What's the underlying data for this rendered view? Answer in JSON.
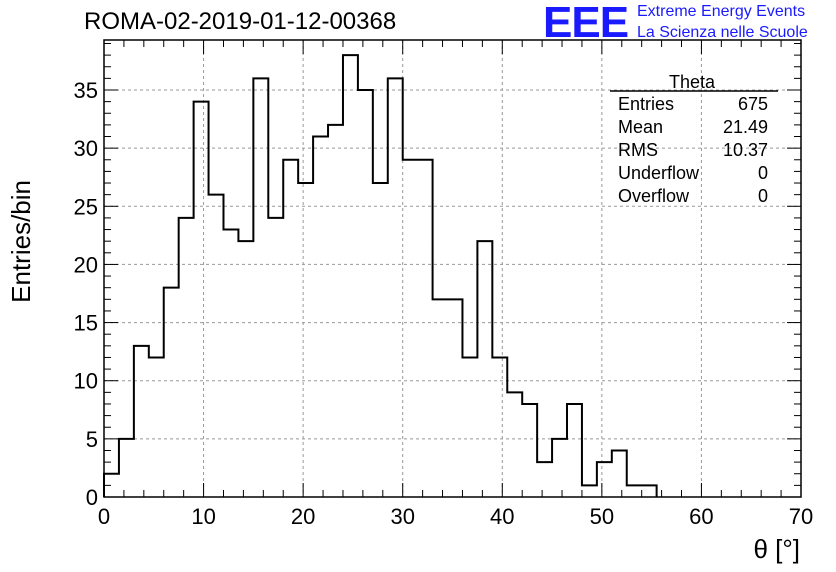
{
  "header": {
    "title": "ROMA-02-2019-01-12-00368",
    "logo_text": "EEE",
    "org_line1": "Extreme Energy Events",
    "org_line2": "La Scienza nelle Scuole"
  },
  "stats_box": {
    "name": "Theta",
    "rows": [
      {
        "label": "Entries",
        "value": "675"
      },
      {
        "label": "Mean",
        "value": "21.49"
      },
      {
        "label": "RMS",
        "value": "10.37"
      },
      {
        "label": "Underflow",
        "value": "0"
      },
      {
        "label": "Overflow",
        "value": "0"
      }
    ]
  },
  "chart_data": {
    "type": "histogram",
    "xlabel": "θ [°]",
    "ylabel": "Entries/bin",
    "xlim": [
      0,
      70
    ],
    "ylim": [
      0,
      39.3
    ],
    "bin_width": 1.5,
    "bin_edges_start": 0,
    "values": [
      2,
      5,
      13,
      12,
      18,
      24,
      34,
      26,
      23,
      22,
      36,
      24,
      29,
      27,
      31,
      32,
      38,
      35,
      27,
      36,
      29,
      29,
      17,
      17,
      12,
      22,
      12,
      9,
      8,
      3,
      5,
      8,
      1,
      3,
      4,
      1,
      1
    ],
    "xticks": [
      0,
      10,
      20,
      30,
      40,
      50,
      60,
      70
    ],
    "yticks": [
      0,
      5,
      10,
      15,
      20,
      25,
      30,
      35
    ],
    "grid": true,
    "line_color": "#000000",
    "grid_color": "#999999",
    "logo_color": "#1a1aff"
  }
}
